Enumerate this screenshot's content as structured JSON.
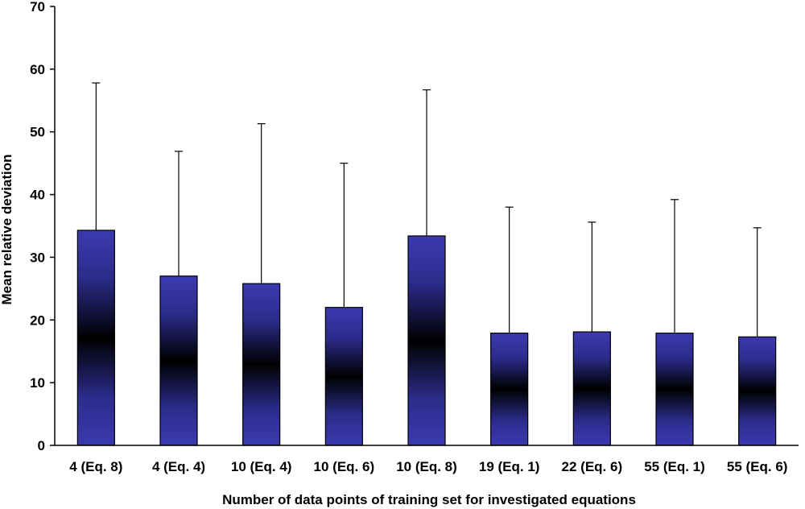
{
  "chart_data": {
    "type": "bar",
    "title": "",
    "xlabel": "Number of data points of training set for investigated equations",
    "ylabel": "Mean relative deviation",
    "ylim": [
      0,
      70
    ],
    "yticks": [
      0,
      10,
      20,
      30,
      40,
      50,
      60,
      70
    ],
    "grid": false,
    "legend": "none",
    "categories": [
      "4 (Eq. 8)",
      "4 (Eq. 4)",
      "10 (Eq. 4)",
      "10 (Eq. 6)",
      "10 (Eq. 8)",
      "19 (Eq. 1)",
      "22 (Eq. 6)",
      "55 (Eq. 1)",
      "55 (Eq. 6)"
    ],
    "values": [
      34.3,
      27.0,
      25.8,
      22.0,
      33.4,
      17.9,
      18.1,
      17.9,
      17.3
    ],
    "error_upper": [
      57.8,
      46.9,
      51.3,
      45.0,
      56.7,
      38.0,
      35.6,
      39.2,
      34.7
    ],
    "colors": {
      "bar_edge": "#3a3ab0",
      "bar_center": "#000000",
      "axis": "#000000"
    }
  }
}
